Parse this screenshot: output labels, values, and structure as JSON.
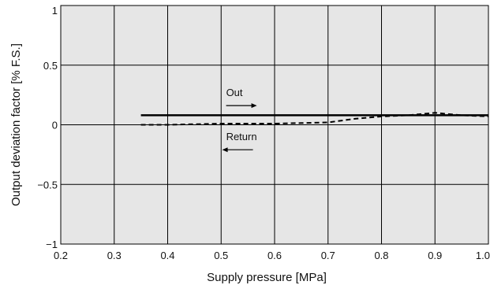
{
  "chart_data": {
    "type": "line",
    "title": "",
    "xlabel": "Supply pressure [MPa]",
    "ylabel": "Output deviation factor [% F.S.]",
    "xlim": [
      0.2,
      1.0
    ],
    "ylim": [
      -1,
      1
    ],
    "grid": true,
    "x_ticks": [
      "0.2",
      "0.3",
      "0.4",
      "0.5",
      "0.6",
      "0.7",
      "0.8",
      "0.9",
      "1.0"
    ],
    "y_ticks": [
      "1",
      "0.5",
      "0",
      "−0.5",
      "−1"
    ],
    "x_tick_values": [
      0.2,
      0.3,
      0.4,
      0.5,
      0.6,
      0.7,
      0.8,
      0.9,
      1.0
    ],
    "y_tick_values": [
      1,
      0.5,
      0,
      -0.5,
      -1
    ],
    "colors": {
      "background": "#e6e6e6",
      "grid": "#000000",
      "series": "#000000"
    },
    "series": [
      {
        "name": "Out",
        "style": "solid",
        "x": [
          0.35,
          0.5,
          0.7,
          0.8,
          0.9,
          1.0
        ],
        "y": [
          0.08,
          0.08,
          0.08,
          0.08,
          0.08,
          0.08
        ]
      },
      {
        "name": "Return",
        "style": "dashed",
        "x": [
          0.35,
          0.4,
          0.5,
          0.6,
          0.7,
          0.75,
          0.8,
          0.85,
          0.9,
          0.95,
          1.0
        ],
        "y": [
          0.0,
          0.0,
          0.01,
          0.01,
          0.02,
          0.05,
          0.07,
          0.08,
          0.1,
          0.08,
          0.07
        ]
      }
    ],
    "annotations": [
      {
        "text": "Out",
        "arrow": "right",
        "x": 0.53,
        "y": 0.24
      },
      {
        "text": "Return",
        "arrow": "left",
        "x": 0.53,
        "y": -0.13
      }
    ]
  }
}
